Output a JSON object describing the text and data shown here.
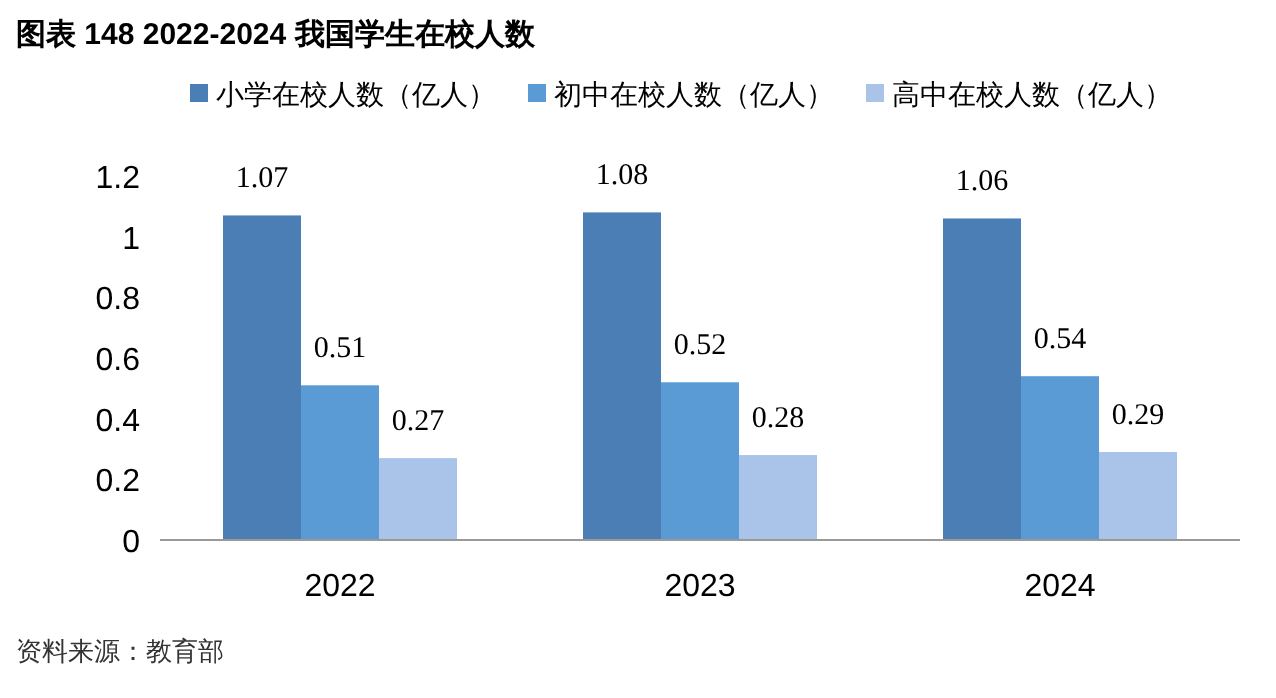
{
  "chart_data": {
    "type": "bar",
    "title": "图表 148 2022-2024 我国学生在校人数",
    "categories": [
      "2022",
      "2023",
      "2024"
    ],
    "series": [
      {
        "name": "小学在校人数（亿人）",
        "color": "#4a7eb5",
        "values": [
          1.07,
          1.08,
          1.06
        ]
      },
      {
        "name": "初中在校人数（亿人）",
        "color": "#5b9bd5",
        "values": [
          0.51,
          0.52,
          0.54
        ]
      },
      {
        "name": "高中在校人数（亿人）",
        "color": "#a9c4e8",
        "values": [
          0.27,
          0.28,
          0.29
        ]
      }
    ],
    "ylim": [
      0,
      1.2
    ],
    "yticks": [
      0,
      0.2,
      0.4,
      0.6,
      0.8,
      1,
      1.2
    ],
    "data_labels": true,
    "legend": "top",
    "annotations": [
      "资料来源：教育部"
    ]
  }
}
